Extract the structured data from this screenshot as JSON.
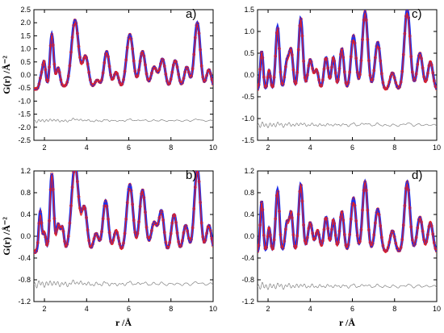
{
  "chart_data": [
    {
      "type": "line",
      "panel_label": "a)",
      "xlabel": "",
      "ylabel": "G(r) /Å⁻²",
      "xlim": [
        1.5,
        10
      ],
      "ylim": [
        -2.5,
        2.5
      ],
      "xticks": [
        "2",
        "4",
        "6",
        "8",
        "10"
      ],
      "yticks": [
        "-2.5",
        "-2.0",
        "-1.5",
        "-1.0",
        "-0.5",
        "0.0",
        "0.5",
        "1.0",
        "1.5",
        "2.0",
        "2.5"
      ],
      "colors": {
        "experimental": "#1f2ee8",
        "fit": "#e8201f",
        "difference": "#808080"
      },
      "peaks": [
        [
          1.82,
          -0.2,
          0.07
        ],
        [
          1.98,
          0.5,
          0.08
        ],
        [
          2.35,
          1.55,
          0.09
        ],
        [
          2.65,
          0.25,
          0.09
        ],
        [
          2.9,
          -0.45,
          0.12
        ],
        [
          3.45,
          2.1,
          0.17
        ],
        [
          3.95,
          0.7,
          0.14
        ],
        [
          4.5,
          -0.2,
          0.12
        ],
        [
          4.95,
          0.9,
          0.13
        ],
        [
          5.4,
          0.1,
          0.12
        ],
        [
          6.05,
          1.55,
          0.16
        ],
        [
          6.65,
          0.9,
          0.14
        ],
        [
          7.2,
          0.3,
          0.14
        ],
        [
          7.6,
          0.6,
          0.13
        ],
        [
          8.2,
          0.55,
          0.14
        ],
        [
          8.75,
          0.3,
          0.12
        ],
        [
          9.25,
          2.0,
          0.14
        ],
        [
          9.8,
          0.2,
          0.12
        ]
      ],
      "baseline": -0.55,
      "difference_offset": -1.75
    },
    {
      "type": "line",
      "panel_label": "c)",
      "xlabel": "",
      "ylabel": "",
      "xlim": [
        1.5,
        10
      ],
      "ylim": [
        -1.5,
        1.5
      ],
      "xticks": [
        "2",
        "4",
        "6",
        "8",
        "10"
      ],
      "yticks": [
        "-1.5",
        "-1.0",
        "-0.5",
        "0.0",
        "0.5",
        "1.0",
        "1.5"
      ],
      "colors": {
        "experimental": "#1f2ee8",
        "fit": "#e8201f",
        "difference": "#808080"
      },
      "peaks": [
        [
          1.7,
          0.55,
          0.07
        ],
        [
          2.05,
          0.1,
          0.07
        ],
        [
          2.45,
          1.1,
          0.09
        ],
        [
          2.9,
          0.3,
          0.1
        ],
        [
          3.1,
          0.5,
          0.09
        ],
        [
          3.55,
          1.3,
          0.1
        ],
        [
          4.0,
          0.35,
          0.11
        ],
        [
          4.3,
          0.1,
          0.1
        ],
        [
          4.75,
          0.4,
          0.1
        ],
        [
          5.1,
          0.4,
          0.09
        ],
        [
          5.5,
          0.6,
          0.1
        ],
        [
          6.05,
          0.9,
          0.12
        ],
        [
          6.6,
          1.45,
          0.13
        ],
        [
          7.2,
          0.75,
          0.13
        ],
        [
          7.9,
          0.05,
          0.12
        ],
        [
          8.6,
          1.5,
          0.14
        ],
        [
          9.2,
          0.5,
          0.13
        ],
        [
          9.7,
          0.3,
          0.12
        ]
      ],
      "baseline": -0.35,
      "difference_offset": -1.15
    },
    {
      "type": "line",
      "panel_label": "b)",
      "xlabel": "r /Å",
      "ylabel": "G(r) /Å⁻²",
      "xlim": [
        1.5,
        10
      ],
      "ylim": [
        -1.2,
        1.2
      ],
      "xticks": [
        "2",
        "4",
        "6",
        "8",
        "10"
      ],
      "yticks": [
        "-1.2",
        "-0.8",
        "-0.4",
        "0.0",
        "0.4",
        "0.8",
        "1.2"
      ],
      "colors": {
        "experimental": "#1f2ee8",
        "fit": "#e8201f",
        "difference": "#808080"
      },
      "peaks": [
        [
          1.8,
          0.45,
          0.07
        ],
        [
          2.0,
          0.05,
          0.07
        ],
        [
          2.35,
          1.15,
          0.09
        ],
        [
          2.65,
          0.2,
          0.08
        ],
        [
          2.85,
          0.15,
          0.08
        ],
        [
          3.45,
          1.3,
          0.17
        ],
        [
          3.9,
          0.5,
          0.13
        ],
        [
          4.45,
          0.05,
          0.12
        ],
        [
          4.9,
          0.65,
          0.13
        ],
        [
          5.4,
          0.1,
          0.12
        ],
        [
          6.05,
          0.95,
          0.15
        ],
        [
          6.65,
          0.85,
          0.14
        ],
        [
          7.2,
          0.25,
          0.14
        ],
        [
          7.55,
          0.45,
          0.12
        ],
        [
          8.15,
          0.4,
          0.13
        ],
        [
          8.7,
          0.2,
          0.12
        ],
        [
          9.25,
          1.25,
          0.14
        ],
        [
          9.8,
          0.2,
          0.12
        ]
      ],
      "baseline": -0.3,
      "difference_offset": -0.88
    },
    {
      "type": "line",
      "panel_label": "d)",
      "xlabel": "r /Å",
      "ylabel": "",
      "xlim": [
        1.5,
        10
      ],
      "ylim": [
        -1.2,
        1.2
      ],
      "xticks": [
        "2",
        "4",
        "6",
        "8",
        "10"
      ],
      "yticks": [
        "-1.2",
        "-0.8",
        "-0.4",
        "0.0",
        "0.4",
        "0.8",
        "1.2"
      ],
      "colors": {
        "experimental": "#1f2ee8",
        "fit": "#e8201f",
        "difference": "#808080"
      },
      "peaks": [
        [
          1.7,
          0.65,
          0.07
        ],
        [
          2.05,
          0.15,
          0.07
        ],
        [
          2.45,
          0.85,
          0.09
        ],
        [
          2.9,
          0.25,
          0.09
        ],
        [
          3.1,
          0.4,
          0.08
        ],
        [
          3.55,
          0.95,
          0.1
        ],
        [
          4.0,
          0.25,
          0.11
        ],
        [
          4.35,
          0.1,
          0.1
        ],
        [
          4.75,
          0.35,
          0.1
        ],
        [
          5.1,
          0.3,
          0.09
        ],
        [
          5.5,
          0.45,
          0.1
        ],
        [
          6.05,
          0.7,
          0.12
        ],
        [
          6.6,
          1.0,
          0.12
        ],
        [
          7.2,
          0.5,
          0.13
        ],
        [
          7.9,
          0.1,
          0.12
        ],
        [
          8.6,
          1.0,
          0.13
        ],
        [
          9.2,
          0.35,
          0.13
        ],
        [
          9.7,
          0.25,
          0.12
        ]
      ],
      "baseline": -0.3,
      "difference_offset": -0.92
    }
  ]
}
